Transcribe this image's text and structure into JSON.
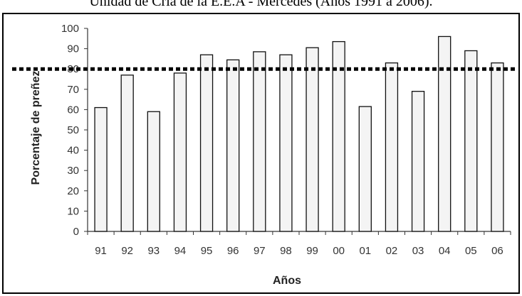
{
  "caption": "Unidad de Cría de la E.E.A - Mercedes (Años 1991 a 2006).",
  "chart_data": {
    "type": "bar",
    "title": "",
    "xlabel": "Años",
    "ylabel": "Porcentaje de preñez",
    "categories": [
      "91",
      "92",
      "93",
      "94",
      "95",
      "96",
      "97",
      "98",
      "99",
      "00",
      "01",
      "02",
      "03",
      "04",
      "05",
      "06"
    ],
    "values": [
      61,
      77,
      59,
      78,
      87,
      84.5,
      88.5,
      87,
      90.5,
      93.5,
      61.5,
      83,
      69,
      96,
      89,
      83
    ],
    "ylim": [
      0,
      100
    ],
    "yticks": [
      0,
      10,
      20,
      30,
      40,
      50,
      60,
      70,
      80,
      90,
      100
    ],
    "reference_line": 80,
    "grid": false,
    "bar_fill": "#f4f4f4",
    "bar_stroke": "#111111",
    "reference_line_color": "#000000"
  }
}
